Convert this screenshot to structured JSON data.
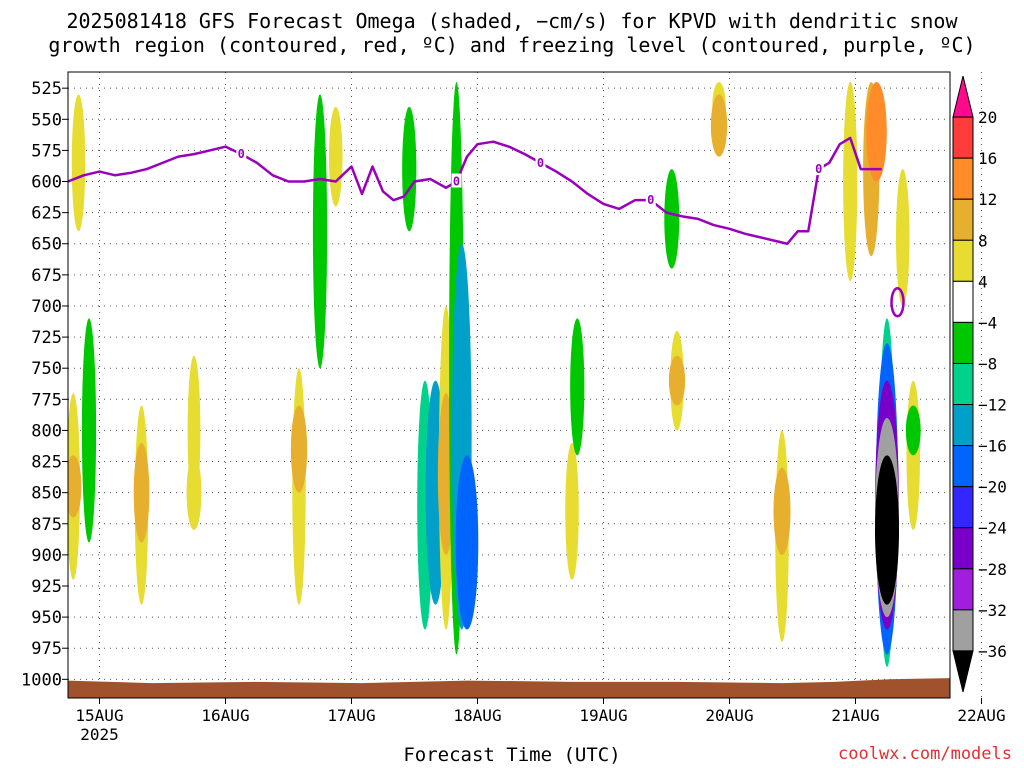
{
  "header": {
    "line1": "2025081418 GFS Forecast Omega (shaded, −cm/s) for KPVD with dendritic snow",
    "line2": "growth region (contoured, red, ºC) and freezing level (contoured, purple, ºC)"
  },
  "footer": {
    "credit": "coolwx.com/models"
  },
  "chart_data": {
    "type": "heatmap",
    "xlabel": "Forecast Time (UTC)",
    "x_tick_labels": [
      "15AUG",
      "16AUG",
      "17AUG",
      "18AUG",
      "19AUG",
      "20AUG",
      "21AUG",
      "22AUG"
    ],
    "x_year_label": "2025",
    "x_range_hours": [
      -6,
      162
    ],
    "y_levels_hpa": [
      525,
      550,
      575,
      600,
      625,
      650,
      675,
      700,
      725,
      750,
      775,
      800,
      825,
      850,
      875,
      900,
      925,
      950,
      975,
      1000
    ],
    "y_range_hpa": [
      512,
      1015
    ],
    "grid": "dotted",
    "colorbar": {
      "labels": [
        "20",
        "16",
        "12",
        "8",
        "4",
        "−4",
        "−8",
        "−12",
        "−16",
        "−20",
        "−24",
        "−28",
        "−32",
        "−36"
      ],
      "colors": [
        "#ff0a8c",
        "#ff3c3c",
        "#ff8c28",
        "#e6af2d",
        "#e6dc32",
        "#ffffff",
        "#00c800",
        "#00d28c",
        "#00a0c8",
        "#0064ff",
        "#3228ff",
        "#7800c8",
        "#a01edc",
        "#a0a0a0",
        "#000000"
      ]
    },
    "freezing_level": {
      "color": "#9900bb",
      "label": "0",
      "points": [
        [
          -6,
          600
        ],
        [
          -3,
          595
        ],
        [
          0,
          592
        ],
        [
          3,
          595
        ],
        [
          6,
          593
        ],
        [
          9,
          590
        ],
        [
          12,
          585
        ],
        [
          15,
          580
        ],
        [
          18,
          578
        ],
        [
          21,
          575
        ],
        [
          24,
          572
        ],
        [
          27,
          578
        ],
        [
          30,
          585
        ],
        [
          33,
          595
        ],
        [
          36,
          600
        ],
        [
          39,
          600
        ],
        [
          42,
          598
        ],
        [
          45,
          600
        ],
        [
          48,
          588
        ],
        [
          50,
          610
        ],
        [
          52,
          588
        ],
        [
          54,
          608
        ],
        [
          56,
          615
        ],
        [
          58,
          612
        ],
        [
          60,
          600
        ],
        [
          63,
          598
        ],
        [
          66,
          605
        ],
        [
          68,
          600
        ],
        [
          70,
          580
        ],
        [
          72,
          570
        ],
        [
          75,
          568
        ],
        [
          78,
          572
        ],
        [
          81,
          578
        ],
        [
          84,
          585
        ],
        [
          87,
          592
        ],
        [
          90,
          600
        ],
        [
          93,
          610
        ],
        [
          96,
          618
        ],
        [
          99,
          622
        ],
        [
          102,
          615
        ],
        [
          105,
          615
        ],
        [
          108,
          625
        ],
        [
          111,
          628
        ],
        [
          114,
          630
        ],
        [
          117,
          635
        ],
        [
          120,
          638
        ],
        [
          123,
          642
        ],
        [
          126,
          645
        ],
        [
          129,
          648
        ],
        [
          131,
          650
        ],
        [
          133,
          640
        ],
        [
          135,
          640
        ],
        [
          137,
          590
        ],
        [
          139,
          585
        ],
        [
          141,
          570
        ],
        [
          143,
          565
        ],
        [
          145,
          590
        ],
        [
          147,
          590
        ],
        [
          149,
          590
        ]
      ]
    },
    "omega_blobs": [
      {
        "hour": -4,
        "p_top": 530,
        "p_bot": 640,
        "value": 5
      },
      {
        "hour": -5,
        "p_top": 770,
        "p_bot": 920,
        "value": 5
      },
      {
        "hour": -5,
        "p_top": 820,
        "p_bot": 870,
        "value": 9
      },
      {
        "hour": -2,
        "p_top": 710,
        "p_bot": 890,
        "value": -6
      },
      {
        "hour": 8,
        "p_top": 780,
        "p_bot": 940,
        "value": 5
      },
      {
        "hour": 8,
        "p_top": 810,
        "p_bot": 890,
        "value": 8
      },
      {
        "hour": 18,
        "p_top": 740,
        "p_bot": 860,
        "value": 4
      },
      {
        "hour": 18,
        "p_top": 820,
        "p_bot": 880,
        "value": 7
      },
      {
        "hour": 38,
        "p_top": 750,
        "p_bot": 940,
        "value": 5
      },
      {
        "hour": 38,
        "p_top": 780,
        "p_bot": 850,
        "value": 9
      },
      {
        "hour": 42,
        "p_top": 530,
        "p_bot": 750,
        "value": -6
      },
      {
        "hour": 45,
        "p_top": 540,
        "p_bot": 620,
        "value": 5
      },
      {
        "hour": 59,
        "p_top": 540,
        "p_bot": 640,
        "value": -6
      },
      {
        "hour": 62,
        "p_top": 760,
        "p_bot": 960,
        "value": -8
      },
      {
        "hour": 64,
        "p_top": 760,
        "p_bot": 940,
        "value": -14
      },
      {
        "hour": 66,
        "p_top": 700,
        "p_bot": 960,
        "value": 6
      },
      {
        "hour": 66,
        "p_top": 770,
        "p_bot": 900,
        "value": 9
      },
      {
        "hour": 68,
        "p_top": 520,
        "p_bot": 980,
        "value": -7
      },
      {
        "hour": 69,
        "p_top": 650,
        "p_bot": 960,
        "value": -14
      },
      {
        "hour": 70,
        "p_top": 820,
        "p_bot": 960,
        "value": -18
      },
      {
        "hour": 90,
        "p_top": 810,
        "p_bot": 920,
        "value": 5
      },
      {
        "hour": 91,
        "p_top": 710,
        "p_bot": 820,
        "value": -6
      },
      {
        "hour": 110,
        "p_top": 720,
        "p_bot": 800,
        "value": 5
      },
      {
        "hour": 110,
        "p_top": 740,
        "p_bot": 780,
        "value": 9
      },
      {
        "hour": 109,
        "p_top": 590,
        "p_bot": 670,
        "value": -7
      },
      {
        "hour": 118,
        "p_top": 520,
        "p_bot": 560,
        "value": 5
      },
      {
        "hour": 118,
        "p_top": 530,
        "p_bot": 580,
        "value": 9
      },
      {
        "hour": 130,
        "p_top": 800,
        "p_bot": 970,
        "value": 5
      },
      {
        "hour": 130,
        "p_top": 830,
        "p_bot": 900,
        "value": 10
      },
      {
        "hour": 143,
        "p_top": 520,
        "p_bot": 680,
        "value": 6
      },
      {
        "hour": 147,
        "p_top": 520,
        "p_bot": 660,
        "value": 9
      },
      {
        "hour": 148,
        "p_top": 520,
        "p_bot": 600,
        "value": 15
      },
      {
        "hour": 153,
        "p_top": 590,
        "p_bot": 700,
        "value": 5
      },
      {
        "hour": 150,
        "p_top": 710,
        "p_bot": 990,
        "value": -9
      },
      {
        "hour": 150,
        "p_top": 730,
        "p_bot": 980,
        "value": -18
      },
      {
        "hour": 150,
        "p_top": 760,
        "p_bot": 960,
        "value": -26
      },
      {
        "hour": 150,
        "p_top": 790,
        "p_bot": 950,
        "value": -33
      },
      {
        "hour": 150,
        "p_top": 820,
        "p_bot": 940,
        "value": -40
      },
      {
        "hour": 155,
        "p_top": 760,
        "p_bot": 880,
        "value": 5
      },
      {
        "hour": 155,
        "p_top": 780,
        "p_bot": 820,
        "value": -7
      }
    ],
    "surface": {
      "color": "#a0522d",
      "points": [
        [
          -6,
          1001
        ],
        [
          10,
          1003
        ],
        [
          30,
          1002
        ],
        [
          50,
          1003
        ],
        [
          70,
          1001
        ],
        [
          90,
          1002
        ],
        [
          110,
          1002
        ],
        [
          130,
          1003
        ],
        [
          140,
          1002
        ],
        [
          150,
          1000
        ],
        [
          162,
          999
        ]
      ]
    }
  }
}
